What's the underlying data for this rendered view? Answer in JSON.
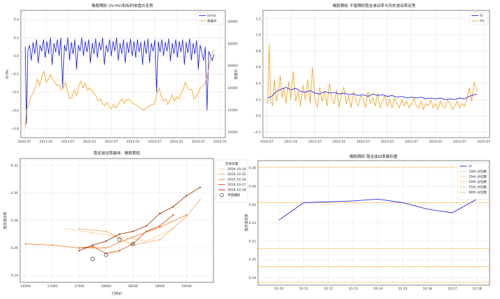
{
  "chart_data": [
    {
      "type": "line",
      "title": "橡胶期权 (IV-HV)和标的收盘价走势",
      "xlabel": "",
      "ylabel": "IV-HV",
      "ylabel_right": "收盘价",
      "x_ticks": [
        "2020-07",
        "2021-01",
        "2021-07",
        "2022-01",
        "2022-07",
        "2023-01",
        "2023-07",
        "2024-01",
        "2024-07",
        "2025-01"
      ],
      "x_range": [
        2020.42,
        2025.12
      ],
      "ylim": [
        -0.9,
        0.5
      ],
      "y_ticks": [
        -0.8,
        -0.6,
        -0.4,
        -0.2,
        0.0,
        0.2,
        0.4
      ],
      "y_tick_labels": [
        "−0.8",
        "−0.6",
        "−0.4",
        "−0.2",
        "0.0",
        "0.2",
        "0.4"
      ],
      "ylim_right": [
        9500,
        21000
      ],
      "y_ticks_right": [
        10000,
        12000,
        14000,
        16000,
        18000,
        20000
      ],
      "legend": "top-right",
      "grid": true,
      "series": [
        {
          "name": "IV-HV",
          "color": "#2a2ae6",
          "x": [
            2020.52,
            2020.55,
            2020.58,
            2020.62,
            2020.66,
            2020.7,
            2020.74,
            2020.78,
            2020.82,
            2020.86,
            2020.9,
            2020.94,
            2020.98,
            2021.02,
            2021.06,
            2021.1,
            2021.14,
            2021.18,
            2021.22,
            2021.26,
            2021.3,
            2021.34,
            2021.38,
            2021.42,
            2021.46,
            2021.5,
            2021.54,
            2021.58,
            2021.62,
            2021.66,
            2021.7,
            2021.74,
            2021.78,
            2021.82,
            2021.86,
            2021.9,
            2021.94,
            2021.98,
            2022.02,
            2022.06,
            2022.1,
            2022.14,
            2022.18,
            2022.22,
            2022.26,
            2022.3,
            2022.34,
            2022.38,
            2022.42,
            2022.46,
            2022.5,
            2022.54,
            2022.58,
            2022.62,
            2022.66,
            2022.7,
            2022.74,
            2022.78,
            2022.82,
            2022.86,
            2022.9,
            2022.94,
            2022.98,
            2023.02,
            2023.06,
            2023.1,
            2023.14,
            2023.18,
            2023.22,
            2023.26,
            2023.3,
            2023.34,
            2023.38,
            2023.42,
            2023.46,
            2023.5,
            2023.54,
            2023.58,
            2023.62,
            2023.66,
            2023.7,
            2023.74,
            2023.78,
            2023.82,
            2023.86,
            2023.9,
            2023.94,
            2023.98,
            2024.02,
            2024.06,
            2024.1,
            2024.14,
            2024.18,
            2024.22,
            2024.26,
            2024.3,
            2024.34,
            2024.38,
            2024.42,
            2024.46,
            2024.5,
            2024.54,
            2024.58,
            2024.62,
            2024.66,
            2024.7,
            2024.74,
            2024.78,
            2024.82,
            2024.86
          ],
          "y": [
            0.1,
            -0.75,
            0.05,
            0.12,
            -0.05,
            0.15,
            0.02,
            0.18,
            -0.08,
            0.12,
            0.05,
            0.18,
            -0.02,
            0.16,
            0.02,
            0.2,
            -0.1,
            0.14,
            0.04,
            0.18,
            0.0,
            0.2,
            -0.35,
            0.12,
            0.05,
            0.2,
            -0.05,
            0.15,
            0.02,
            0.18,
            -0.15,
            0.12,
            0.05,
            0.2,
            0.0,
            0.16,
            0.04,
            0.18,
            -0.08,
            0.14,
            0.02,
            0.19,
            -0.02,
            0.15,
            0.06,
            0.2,
            -0.1,
            0.12,
            0.04,
            0.18,
            0.0,
            0.16,
            0.05,
            0.2,
            -0.05,
            0.14,
            0.02,
            0.18,
            -0.08,
            0.15,
            0.03,
            0.19,
            0.0,
            0.16,
            -0.02,
            0.18,
            0.04,
            0.15,
            -0.1,
            0.17,
            0.02,
            0.19,
            -0.08,
            0.14,
            0.05,
            0.18,
            -0.4,
            0.16,
            0.04,
            0.18,
            0.0,
            0.15,
            0.05,
            0.19,
            -0.06,
            0.14,
            0.02,
            0.18,
            -0.02,
            0.16,
            0.04,
            0.18,
            -0.1,
            0.15,
            0.03,
            0.19,
            -0.05,
            0.14,
            0.02,
            0.17,
            -0.15,
            0.12,
            0.04,
            -0.05,
            0.1,
            -0.6,
            0.05,
            0.0,
            -0.05,
            0.02
          ]
        },
        {
          "name": "收盘价",
          "color": "#f5a623",
          "axis": "right",
          "x": [
            2020.52,
            2020.55,
            2020.6,
            2020.65,
            2020.7,
            2020.75,
            2020.8,
            2020.85,
            2020.9,
            2020.95,
            2021.0,
            2021.05,
            2021.1,
            2021.15,
            2021.2,
            2021.25,
            2021.3,
            2021.35,
            2021.4,
            2021.45,
            2021.5,
            2021.55,
            2021.6,
            2021.65,
            2021.7,
            2021.75,
            2021.8,
            2021.85,
            2021.9,
            2021.95,
            2022.0,
            2022.05,
            2022.1,
            2022.15,
            2022.2,
            2022.25,
            2022.3,
            2022.35,
            2022.4,
            2022.45,
            2022.5,
            2022.55,
            2022.6,
            2022.65,
            2022.7,
            2022.75,
            2022.8,
            2022.85,
            2022.9,
            2022.95,
            2023.0,
            2023.05,
            2023.1,
            2023.15,
            2023.2,
            2023.25,
            2023.3,
            2023.35,
            2023.4,
            2023.45,
            2023.5,
            2023.55,
            2023.6,
            2023.65,
            2023.7,
            2023.75,
            2023.8,
            2023.85,
            2023.9,
            2023.95,
            2024.0,
            2024.05,
            2024.1,
            2024.15,
            2024.2,
            2024.25,
            2024.3,
            2024.35,
            2024.4,
            2024.45,
            2024.5,
            2024.55,
            2024.6,
            2024.65,
            2024.7,
            2024.75,
            2024.8,
            2024.85
          ],
          "y": [
            10500,
            12000,
            12500,
            13200,
            13500,
            14000,
            14800,
            14200,
            15000,
            15500,
            14500,
            14800,
            15200,
            14800,
            14500,
            14200,
            14300,
            13800,
            14000,
            14500,
            13500,
            13000,
            13200,
            13800,
            13300,
            14200,
            14600,
            14000,
            14400,
            13800,
            14000,
            13700,
            13500,
            13300,
            12800,
            13000,
            12600,
            12400,
            12700,
            12300,
            12100,
            12500,
            12200,
            12400,
            12800,
            13000,
            12600,
            12900,
            13000,
            12800,
            12600,
            12500,
            12400,
            12200,
            12100,
            12000,
            12200,
            12300,
            12400,
            12500,
            12600,
            13500,
            14000,
            13200,
            12800,
            13000,
            12500,
            12900,
            13400,
            12800,
            13200,
            13000,
            13500,
            13800,
            14500,
            14000,
            13800,
            13900,
            13000,
            13200,
            13600,
            14000,
            14200,
            14400,
            15000,
            16000,
            17000,
            17400
          ]
        }
      ]
    },
    {
      "type": "line",
      "title": "橡胶期权 平值期权隐含波动率与历史波动率走势",
      "xlabel": "",
      "ylabel": "",
      "x_ticks": [
        "2020-07",
        "2021-01",
        "2021-07",
        "2022-01",
        "2022-07",
        "2023-01",
        "2023-07",
        "2024-01",
        "2024-07",
        "2025-01"
      ],
      "x_range": [
        2020.42,
        2025.12
      ],
      "ylim": [
        -0.27,
        1.3
      ],
      "y_ticks": [
        -0.2,
        0.0,
        0.2,
        0.4,
        0.6,
        0.8,
        1.0,
        1.2
      ],
      "y_tick_labels": [
        "−0.2",
        "0.0",
        "0.2",
        "0.4",
        "0.6",
        "0.8",
        "1.0",
        "1.2"
      ],
      "legend": "top-right",
      "grid": true,
      "series": [
        {
          "name": "IV",
          "color": "#2a2ae6",
          "x": [
            2020.52,
            2020.6,
            2020.7,
            2020.8,
            2020.9,
            2021.0,
            2021.1,
            2021.2,
            2021.3,
            2021.4,
            2021.5,
            2021.6,
            2021.7,
            2021.8,
            2021.9,
            2022.0,
            2022.1,
            2022.2,
            2022.3,
            2022.4,
            2022.5,
            2022.6,
            2022.7,
            2022.8,
            2022.9,
            2023.0,
            2023.1,
            2023.2,
            2023.3,
            2023.4,
            2023.5,
            2023.6,
            2023.7,
            2023.8,
            2023.9,
            2024.0,
            2024.1,
            2024.2,
            2024.3,
            2024.4,
            2024.5,
            2024.6,
            2024.7,
            2024.8,
            2024.86
          ],
          "y": [
            0.22,
            0.24,
            0.3,
            0.33,
            0.35,
            0.32,
            0.34,
            0.3,
            0.29,
            0.31,
            0.28,
            0.27,
            0.3,
            0.28,
            0.29,
            0.27,
            0.28,
            0.26,
            0.27,
            0.25,
            0.26,
            0.24,
            0.27,
            0.25,
            0.26,
            0.24,
            0.25,
            0.23,
            0.24,
            0.22,
            0.23,
            0.22,
            0.23,
            0.21,
            0.22,
            0.21,
            0.22,
            0.2,
            0.21,
            0.2,
            0.22,
            0.21,
            0.24,
            0.26,
            0.27
          ]
        },
        {
          "name": "HV",
          "color": "#f5a623",
          "x": [
            2020.52,
            2020.55,
            2020.58,
            2020.62,
            2020.66,
            2020.7,
            2020.74,
            2020.78,
            2020.82,
            2020.86,
            2020.9,
            2020.95,
            2021.0,
            2021.05,
            2021.1,
            2021.15,
            2021.2,
            2021.25,
            2021.3,
            2021.35,
            2021.4,
            2021.45,
            2021.5,
            2021.55,
            2021.6,
            2021.65,
            2021.7,
            2021.75,
            2021.8,
            2021.85,
            2021.9,
            2021.95,
            2022.0,
            2022.05,
            2022.1,
            2022.15,
            2022.2,
            2022.25,
            2022.3,
            2022.35,
            2022.4,
            2022.45,
            2022.5,
            2022.55,
            2022.6,
            2022.65,
            2022.7,
            2022.75,
            2022.8,
            2022.85,
            2022.9,
            2022.95,
            2023.0,
            2023.05,
            2023.1,
            2023.15,
            2023.2,
            2023.25,
            2023.3,
            2023.35,
            2023.4,
            2023.45,
            2023.5,
            2023.55,
            2023.6,
            2023.65,
            2023.7,
            2023.75,
            2023.8,
            2023.85,
            2023.9,
            2023.95,
            2024.0,
            2024.05,
            2024.1,
            2024.15,
            2024.2,
            2024.25,
            2024.3,
            2024.35,
            2024.4,
            2024.45,
            2024.5,
            2024.55,
            2024.6,
            2024.65,
            2024.7,
            2024.75,
            2024.8,
            2024.86
          ],
          "y": [
            0.15,
            0.88,
            0.2,
            0.12,
            0.45,
            0.18,
            0.3,
            0.5,
            0.22,
            0.35,
            0.15,
            0.42,
            0.2,
            0.55,
            0.18,
            0.3,
            0.12,
            0.38,
            0.2,
            0.45,
            0.15,
            0.6,
            0.22,
            0.1,
            0.35,
            0.18,
            0.3,
            0.12,
            0.4,
            0.2,
            0.15,
            0.32,
            0.1,
            0.28,
            0.35,
            0.15,
            0.25,
            0.1,
            0.3,
            0.18,
            0.12,
            0.25,
            0.2,
            0.1,
            0.3,
            0.15,
            0.22,
            0.12,
            0.28,
            0.1,
            0.18,
            0.25,
            0.12,
            0.2,
            0.1,
            0.22,
            0.15,
            0.1,
            0.2,
            0.12,
            0.18,
            0.1,
            0.15,
            0.22,
            0.12,
            0.1,
            0.18,
            0.08,
            0.15,
            0.12,
            0.2,
            0.1,
            0.15,
            0.08,
            0.18,
            0.12,
            0.1,
            0.2,
            0.15,
            0.08,
            0.12,
            0.18,
            0.1,
            0.15,
            0.12,
            0.2,
            0.35,
            0.18,
            0.42,
            0.3
          ]
        }
      ]
    },
    {
      "type": "line",
      "title": "隐含波动率曲线 - 橡胶期权",
      "xlabel": "行权价",
      "ylabel": "隐含波动率",
      "xlim": [
        16400,
        20000
      ],
      "x_ticks": [
        16500,
        17000,
        17500,
        18000,
        18500,
        19000,
        19500
      ],
      "ylim": [
        0.235,
        0.325
      ],
      "y_ticks": [
        0.24,
        0.26,
        0.28,
        0.3,
        0.32
      ],
      "y_tick_labels": [
        "0.24",
        "0.26",
        "0.28",
        "0.30",
        "0.32"
      ],
      "legend_title": "交易日期",
      "legend": "top-right",
      "grid": true,
      "series": [
        {
          "name": "2024-10-14",
          "color": "#fdd0a2",
          "x": [
            17250,
            17750,
            18250,
            18750,
            19250
          ],
          "y": [
            0.274,
            0.271,
            0.268,
            0.265,
            0.274
          ]
        },
        {
          "name": "2024-10-15",
          "color": "#fdae6b",
          "x": [
            17500,
            18000,
            18500,
            19000,
            19500,
            19750
          ],
          "y": [
            0.274,
            0.272,
            0.262,
            0.266,
            0.283,
            0.295
          ]
        },
        {
          "name": "2024-10-16",
          "color": "#f5863a",
          "x": [
            16500,
            17000,
            17500,
            18000,
            18500,
            19000,
            19500
          ],
          "y": [
            0.263,
            0.262,
            0.26,
            0.26,
            0.268,
            0.275,
            0.284
          ]
        },
        {
          "name": "2024-10-17",
          "color": "#d95d18",
          "x": [
            17500,
            17750,
            18000,
            18250,
            18500,
            18750,
            19000,
            19250
          ],
          "y": [
            0.26,
            0.261,
            0.256,
            0.258,
            0.263,
            0.272,
            0.276,
            0.284
          ]
        },
        {
          "name": "2024-10-18",
          "color": "#a63a0a",
          "x": [
            17500,
            17750,
            18000,
            18250,
            18500,
            18750,
            19000,
            19250,
            19500,
            19750
          ],
          "y": [
            0.258,
            0.262,
            0.265,
            0.27,
            0.272,
            0.276,
            0.285,
            0.29,
            0.298,
            0.304
          ]
        }
      ],
      "atm_points": {
        "name": "平值期权",
        "x": [
          17750,
          18000,
          18250,
          18500
        ],
        "y": [
          0.252,
          0.255,
          0.266,
          0.263
        ]
      }
    },
    {
      "type": "line",
      "title": "橡胶期权 隐含波动率锥形图",
      "xlabel": "",
      "ylabel": "隐含波动率",
      "categories": [
        "10-10",
        "10-11",
        "10-12",
        "10-13",
        "10-14",
        "10-15",
        "10-16",
        "10-17",
        "10-18"
      ],
      "ylim": [
        0.172,
        0.308
      ],
      "y_ticks": [
        0.18,
        0.2,
        0.22,
        0.24,
        0.26,
        0.28,
        0.3
      ],
      "y_tick_labels": [
        "0.18",
        "0.20",
        "0.22",
        "0.24",
        "0.26",
        "0.28",
        "0.30"
      ],
      "legend": "top-right",
      "grid": true,
      "series": [
        {
          "name": "IV",
          "color": "#2a2ae6",
          "values": [
            0.243,
            0.262,
            0.263,
            0.264,
            0.266,
            0.262,
            0.255,
            0.251,
            0.266
          ]
        }
      ],
      "percentile_lines": [
        {
          "name": "10th 分位数",
          "value": 0.175
        },
        {
          "name": "25th 分位数",
          "value": 0.192
        },
        {
          "name": "50th 分位数",
          "value": 0.212
        },
        {
          "name": "75th 分位数",
          "value": 0.262
        },
        {
          "name": "90th 分位数",
          "value": 0.301
        }
      ]
    }
  ]
}
